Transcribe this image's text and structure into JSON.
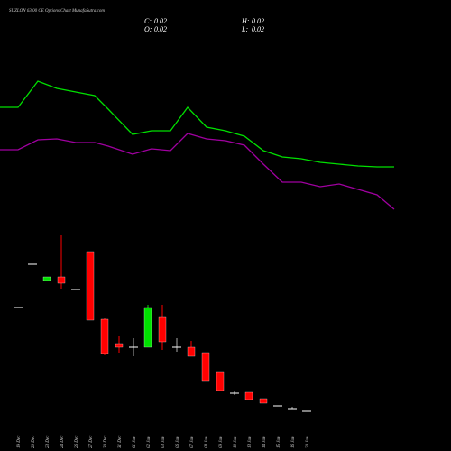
{
  "chart_data": {
    "type": "candlestick",
    "title": "SUZLON 63.00 CE Options Chart MunafaSutra.com",
    "ohlc_display": [
      {
        "label": "C:",
        "value": 0.02
      },
      {
        "label": "H:",
        "value": 0.02
      },
      {
        "label": "O:",
        "value": 0.02
      },
      {
        "label": "L:",
        "value": 0.02
      }
    ],
    "categories": [
      "19 Dec",
      "20 Dec",
      "23 Dec",
      "24 Dec",
      "26 Dec",
      "27 Dec",
      "30 Dec",
      "31 Dec",
      "01 Jan",
      "02 Jan",
      "03 Jan",
      "06 Jan",
      "07 Jan",
      "08 Jan",
      "09 Jan",
      "10 Jan",
      "13 Jan",
      "14 Jan",
      "15 Jan",
      "16 Jan",
      "20 Jan"
    ],
    "open": [
      1.17,
      1.65,
      1.47,
      1.51,
      1.37,
      1.79,
      1.04,
      0.77,
      0.73,
      0.73,
      1.07,
      0.73,
      0.73,
      0.67,
      0.46,
      0.22,
      0.23,
      0.16,
      0.08,
      0.05,
      0.02
    ],
    "high": [
      1.17,
      1.65,
      1.51,
      1.98,
      1.37,
      1.79,
      1.06,
      0.86,
      0.83,
      1.2,
      1.2,
      0.83,
      0.8,
      0.67,
      0.46,
      0.24,
      0.23,
      0.16,
      0.08,
      0.07,
      0.02
    ],
    "low": [
      1.17,
      1.65,
      1.47,
      1.38,
      1.37,
      1.03,
      0.64,
      0.67,
      0.63,
      0.73,
      0.7,
      0.68,
      0.63,
      0.36,
      0.25,
      0.2,
      0.15,
      0.11,
      0.08,
      0.05,
      0.02
    ],
    "close": [
      1.17,
      1.65,
      1.51,
      1.44,
      1.37,
      1.03,
      0.66,
      0.73,
      0.73,
      1.17,
      0.79,
      0.73,
      0.63,
      0.36,
      0.25,
      0.22,
      0.15,
      0.11,
      0.08,
      0.05,
      0.02
    ],
    "up_color": "#00e000",
    "down_color": "#ff0000",
    "flat_color": "#ffffff",
    "ylim": [
      -0.42,
      4.58
    ],
    "lines": [
      {
        "color": "#00e000",
        "axis": "y2",
        "x": [
          0,
          20,
          42,
          63,
          84,
          105,
          120,
          147,
          168,
          189,
          208,
          229,
          250,
          271,
          292,
          313,
          334,
          355,
          376,
          397,
          418,
          437
        ],
        "values": [
          181,
          181,
          210,
          202,
          198,
          194,
          179,
          151,
          155,
          155,
          181,
          159,
          155,
          149,
          133,
          126,
          124,
          120,
          118,
          116,
          115,
          115
        ]
      },
      {
        "color": "#a000a0",
        "axis": "y2",
        "x": [
          0,
          20,
          42,
          63,
          84,
          105,
          120,
          147,
          168,
          189,
          208,
          229,
          250,
          271,
          292,
          313,
          334,
          355,
          376,
          397,
          418,
          437
        ],
        "values": [
          134,
          134,
          145,
          146,
          142,
          142,
          138,
          129,
          135,
          133,
          152,
          146,
          144,
          139,
          118,
          98,
          98,
          93,
          96,
          90,
          84,
          68
        ]
      }
    ],
    "xlim": [
      0,
      500
    ],
    "y2lim": [
      -200,
      300
    ]
  }
}
